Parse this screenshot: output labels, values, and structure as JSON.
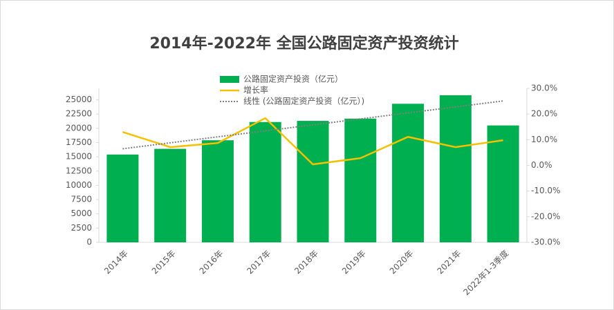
{
  "chart_data": {
    "type": "bar",
    "title": "2014年-2022年 全国公路固定资产投资统计",
    "categories": [
      "2014年",
      "2015年",
      "2016年",
      "2017年",
      "2018年",
      "2019年",
      "2020年",
      "2021年",
      "2022年1-3季度"
    ],
    "series": [
      {
        "name": "公路固定资产投资（亿元）",
        "type": "bar",
        "color": "#00b050",
        "values": [
          15400,
          16400,
          17900,
          21100,
          21300,
          21700,
          24300,
          25800,
          20500
        ]
      },
      {
        "name": "增长率",
        "type": "line",
        "axis": "y2",
        "color": "#f5c000",
        "values": [
          13.0,
          7.1,
          8.7,
          18.4,
          0.4,
          2.8,
          11.1,
          7.1,
          9.8
        ]
      },
      {
        "name": "线性 (公路固定资产投资（亿元）)",
        "type": "line",
        "line_style": "dotted",
        "color": "#7f7f7f",
        "values": [
          16400,
          17450,
          18500,
          19550,
          20600,
          21650,
          22700,
          23750,
          24800
        ]
      }
    ],
    "ylim": [
      0,
      27000
    ],
    "yticks": [
      0,
      2500,
      5000,
      7500,
      10000,
      12500,
      15000,
      17500,
      20000,
      22500,
      25000
    ],
    "y2lim": [
      -30,
      30
    ],
    "y2ticks": [
      {
        "value": -30,
        "label": "-30.0%"
      },
      {
        "value": -20,
        "label": "-20.0%"
      },
      {
        "value": -10,
        "label": "-10.0%"
      },
      {
        "value": 0,
        "label": "0.0%"
      },
      {
        "value": 10,
        "label": "10.0%"
      },
      {
        "value": 20,
        "label": "20.0%"
      },
      {
        "value": 30,
        "label": "30.0%"
      }
    ],
    "grid": false
  }
}
